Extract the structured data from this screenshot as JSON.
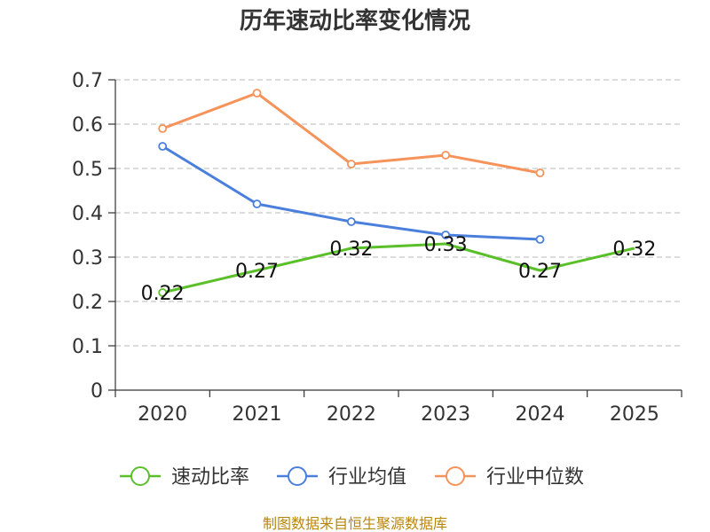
{
  "chart_data": {
    "type": "line",
    "title": "历年速动比率变化情况",
    "categories": [
      "2020",
      "2021",
      "2022",
      "2023",
      "2024",
      "2025"
    ],
    "ylim": [
      0,
      0.7
    ],
    "yticks": [
      "0",
      "0.1",
      "0.2",
      "0.3",
      "0.4",
      "0.5",
      "0.6",
      "0.7"
    ],
    "grid": true,
    "legend_position": "bottom",
    "series": [
      {
        "name": "速动比率",
        "color": "#5bbf2a",
        "values": [
          0.22,
          0.27,
          0.32,
          0.33,
          0.27,
          0.32
        ],
        "labels": [
          "0.22",
          "0.27",
          "0.32",
          "0.33",
          "0.27",
          "0.32"
        ],
        "show_labels": true
      },
      {
        "name": "行业均值",
        "color": "#4a7fdc",
        "values": [
          0.55,
          0.42,
          0.38,
          0.35,
          0.34,
          null
        ],
        "show_labels": false
      },
      {
        "name": "行业中位数",
        "color": "#f5935a",
        "values": [
          0.59,
          0.67,
          0.51,
          0.53,
          0.49,
          null
        ],
        "show_labels": false
      }
    ]
  },
  "source": "制图数据来自恒生聚源数据库"
}
